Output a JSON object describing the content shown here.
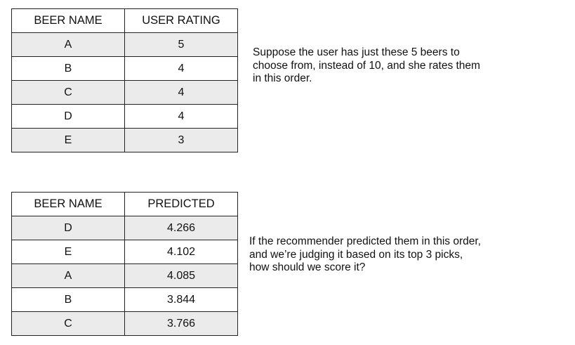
{
  "ratings_table": {
    "headers": [
      "BEER NAME",
      "USER RATING"
    ],
    "rows": [
      [
        "A",
        "5"
      ],
      [
        "B",
        "4"
      ],
      [
        "C",
        "4"
      ],
      [
        "D",
        "4"
      ],
      [
        "E",
        "3"
      ]
    ]
  },
  "ratings_note": {
    "lines": [
      "Suppose the user has just these 5 beers to",
      "choose from, instead of 10, and she rates them",
      "in this order."
    ]
  },
  "predicted_table": {
    "headers": [
      "BEER NAME",
      "PREDICTED"
    ],
    "rows": [
      [
        "D",
        "4.266"
      ],
      [
        "E",
        "4.102"
      ],
      [
        "A",
        "4.085"
      ],
      [
        "B",
        "3.844"
      ],
      [
        "C",
        "3.766"
      ]
    ]
  },
  "predicted_note": {
    "lines": [
      "If the recommender predicted them in this order,",
      "and we’re judging it based on its top 3 picks,",
      "how should we score it?"
    ]
  }
}
